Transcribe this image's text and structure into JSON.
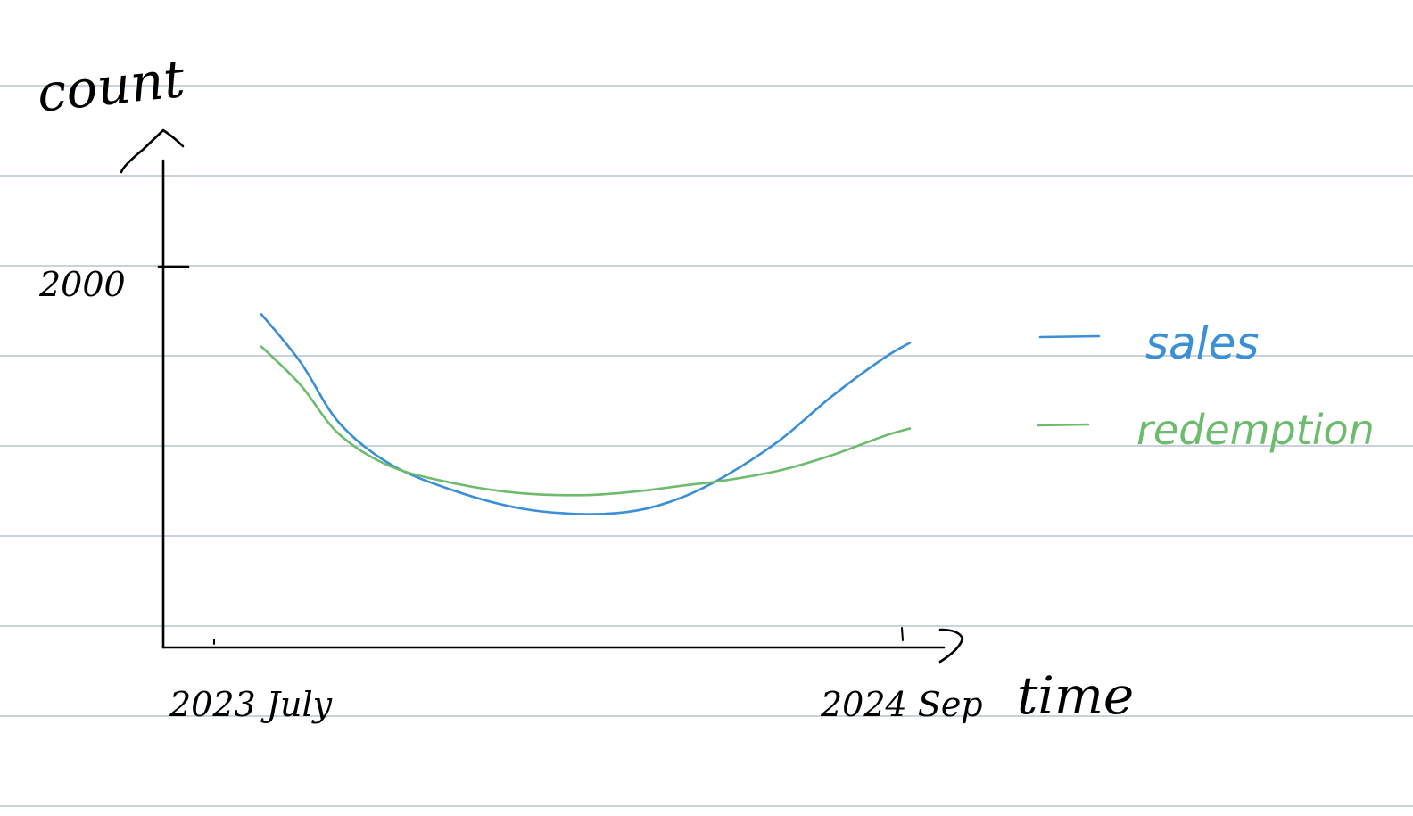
{
  "chart_data": {
    "type": "line",
    "xlabel": "time",
    "ylabel": "count",
    "x_tick_labels": [
      "2023 July",
      "2024 Sep"
    ],
    "y_tick_labels": [
      "2000"
    ],
    "ylim": [
      0,
      2500
    ],
    "grid": false,
    "legend_position": "right",
    "series": [
      {
        "name": "sales",
        "color": "#3a8fd6",
        "x": [
          0.0,
          0.06,
          0.12,
          0.2,
          0.3,
          0.4,
          0.5,
          0.58,
          0.65,
          0.72,
          0.8,
          0.88,
          0.96,
          1.0
        ],
        "y": [
          1750,
          1500,
          1180,
          960,
          820,
          730,
          700,
          720,
          790,
          910,
          1090,
          1320,
          1520,
          1600
        ]
      },
      {
        "name": "redemption",
        "color": "#6dbb6d",
        "x": [
          0.0,
          0.06,
          0.12,
          0.2,
          0.3,
          0.4,
          0.5,
          0.58,
          0.65,
          0.72,
          0.8,
          0.88,
          0.96,
          1.0
        ],
        "y": [
          1580,
          1380,
          1120,
          950,
          860,
          810,
          800,
          820,
          850,
          880,
          930,
          1010,
          1110,
          1150
        ]
      }
    ]
  }
}
